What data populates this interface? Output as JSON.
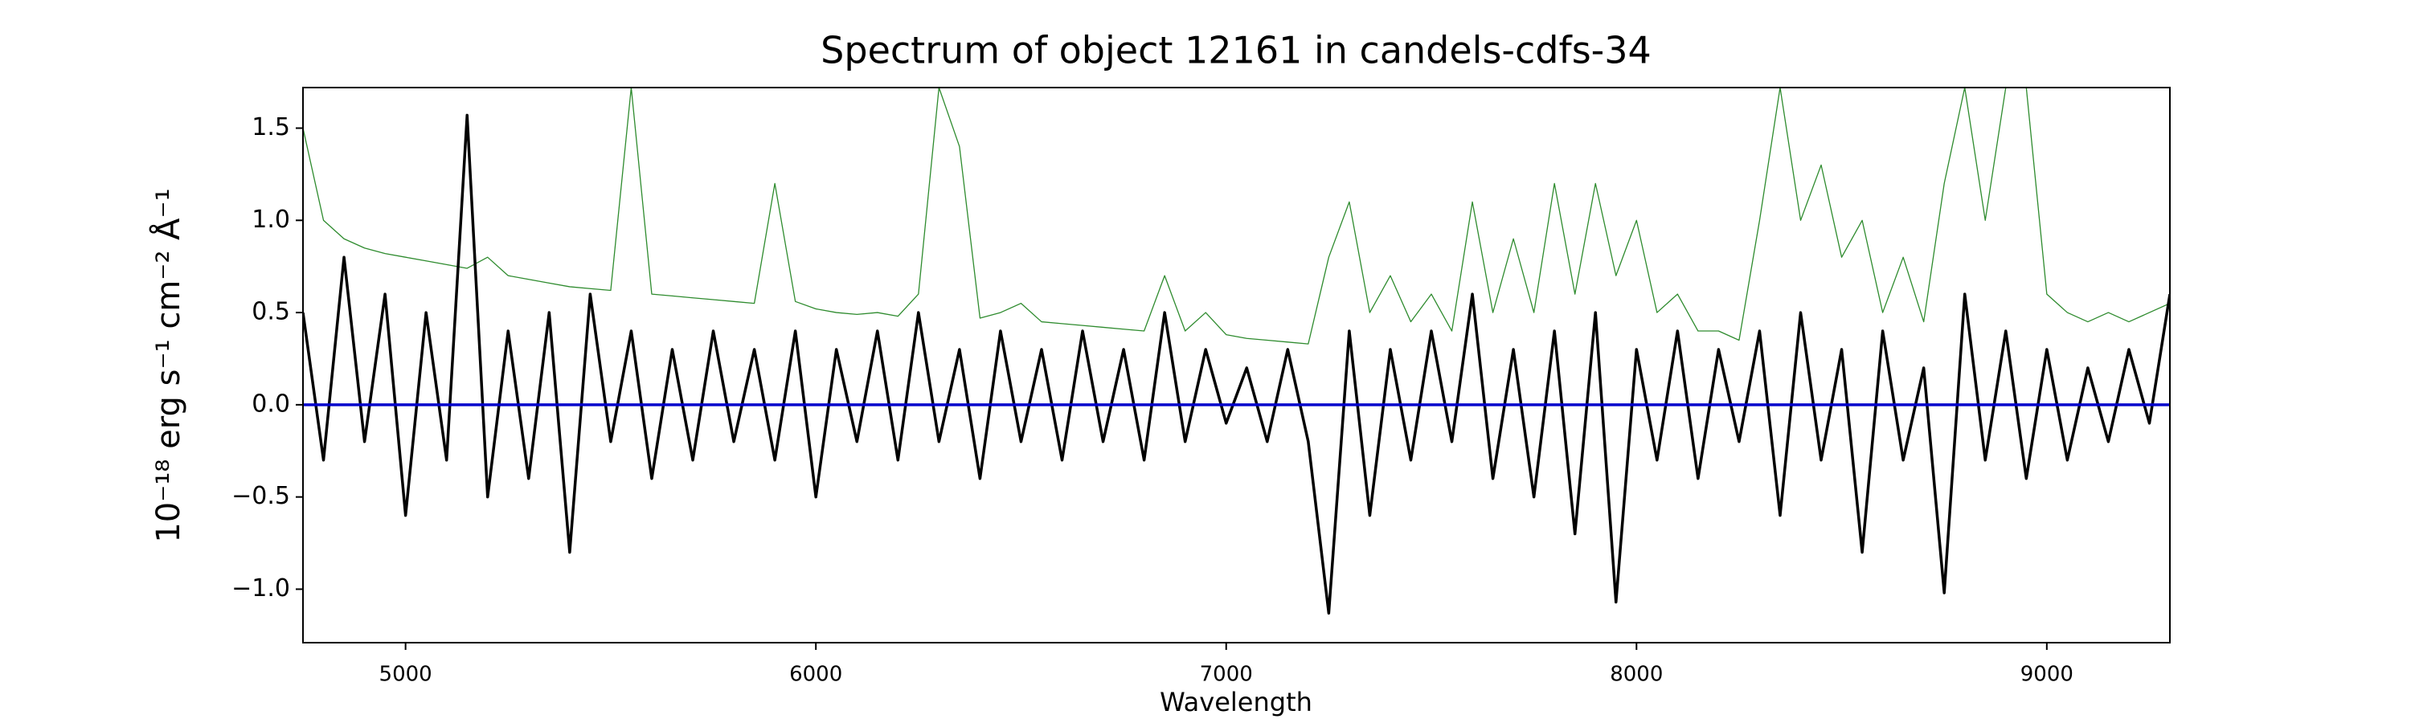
{
  "chart_data": {
    "type": "line",
    "title": "Spectrum of object 12161 in candels-cdfs-34",
    "xlabel": "Wavelength",
    "ylabel": "10⁻¹⁸ erg s⁻¹ cm⁻² Å⁻¹",
    "x": [
      4750,
      4800,
      4850,
      4900,
      4950,
      5000,
      5050,
      5100,
      5150,
      5200,
      5250,
      5300,
      5350,
      5400,
      5450,
      5500,
      5550,
      5600,
      5650,
      5700,
      5750,
      5800,
      5850,
      5900,
      5950,
      6000,
      6050,
      6100,
      6150,
      6200,
      6250,
      6300,
      6350,
      6400,
      6450,
      6500,
      6550,
      6600,
      6650,
      6700,
      6750,
      6800,
      6850,
      6900,
      6950,
      7000,
      7050,
      7100,
      7150,
      7200,
      7250,
      7300,
      7350,
      7400,
      7450,
      7500,
      7550,
      7600,
      7650,
      7700,
      7750,
      7800,
      7850,
      7900,
      7950,
      8000,
      8050,
      8100,
      8150,
      8200,
      8250,
      8300,
      8350,
      8400,
      8450,
      8500,
      8550,
      8600,
      8650,
      8700,
      8750,
      8800,
      8850,
      8900,
      8950,
      9000,
      9050,
      9100,
      9150,
      9200,
      9250,
      9300
    ],
    "series": [
      {
        "color": "#2e8b2e",
        "width": 1.3,
        "values": [
          1.5,
          1.0,
          0.9,
          0.85,
          0.82,
          0.8,
          0.78,
          0.76,
          0.74,
          0.8,
          0.7,
          0.68,
          0.66,
          0.64,
          0.63,
          0.62,
          1.72,
          0.6,
          0.59,
          0.58,
          0.57,
          0.56,
          0.55,
          1.2,
          0.56,
          0.52,
          0.5,
          0.49,
          0.5,
          0.48,
          0.6,
          1.72,
          1.4,
          0.47,
          0.5,
          0.55,
          0.45,
          0.44,
          0.43,
          0.42,
          0.41,
          0.4,
          0.7,
          0.4,
          0.5,
          0.38,
          0.36,
          0.35,
          0.34,
          0.33,
          0.8,
          1.1,
          0.5,
          0.7,
          0.45,
          0.6,
          0.4,
          1.1,
          0.5,
          0.9,
          0.5,
          1.2,
          0.6,
          1.2,
          0.7,
          1.0,
          0.5,
          0.6,
          0.4,
          0.4,
          0.35,
          1.0,
          1.72,
          1.0,
          1.3,
          0.8,
          1.0,
          0.5,
          0.8,
          0.45,
          1.2,
          1.72,
          1.0,
          1.72,
          1.72,
          0.6,
          0.5,
          0.45,
          0.5,
          0.45,
          0.5,
          0.55
        ]
      },
      {
        "color": "#000000",
        "width": 3.5,
        "values": [
          0.5,
          -0.3,
          0.8,
          -0.2,
          0.6,
          -0.6,
          0.5,
          -0.3,
          1.57,
          -0.5,
          0.4,
          -0.4,
          0.5,
          -0.8,
          0.6,
          -0.2,
          0.4,
          -0.4,
          0.3,
          -0.3,
          0.4,
          -0.2,
          0.3,
          -0.3,
          0.4,
          -0.5,
          0.3,
          -0.2,
          0.4,
          -0.3,
          0.5,
          -0.2,
          0.3,
          -0.4,
          0.4,
          -0.2,
          0.3,
          -0.3,
          0.4,
          -0.2,
          0.3,
          -0.3,
          0.5,
          -0.2,
          0.3,
          -0.1,
          0.2,
          -0.2,
          0.3,
          -0.2,
          -1.13,
          0.4,
          -0.6,
          0.3,
          -0.3,
          0.4,
          -0.2,
          0.6,
          -0.4,
          0.3,
          -0.5,
          0.4,
          -0.7,
          0.5,
          -1.07,
          0.3,
          -0.3,
          0.4,
          -0.4,
          0.3,
          -0.2,
          0.4,
          -0.6,
          0.5,
          -0.3,
          0.3,
          -0.8,
          0.4,
          -0.3,
          0.2,
          -1.02,
          0.6,
          -0.3,
          0.4,
          -0.4,
          0.3,
          -0.3,
          0.2,
          -0.2,
          0.3,
          -0.1,
          0.6
        ]
      },
      {
        "color": "#0000cc",
        "width": 3.5,
        "values": [
          0,
          0,
          0,
          0,
          0,
          0,
          0,
          0,
          0,
          0,
          0,
          0,
          0,
          0,
          0,
          0,
          0,
          0,
          0,
          0,
          0,
          0,
          0,
          0,
          0,
          0,
          0,
          0,
          0,
          0,
          0,
          0,
          0,
          0,
          0,
          0,
          0,
          0,
          0,
          0,
          0,
          0,
          0,
          0,
          0,
          0,
          0,
          0,
          0,
          0,
          0,
          0,
          0,
          0,
          0,
          0,
          0,
          0,
          0,
          0,
          0,
          0,
          0,
          0,
          0,
          0,
          0,
          0,
          0,
          0,
          0,
          0,
          0,
          0,
          0,
          0,
          0,
          0,
          0,
          0,
          0,
          0,
          0,
          0,
          0,
          0,
          0,
          0,
          0,
          0,
          0,
          0
        ]
      }
    ],
    "xlim": [
      4750,
      9300
    ],
    "ylim": [
      -1.29,
      1.72
    ],
    "xticks": [
      5000,
      6000,
      7000,
      8000,
      9000
    ],
    "yticks": [
      {
        "value": -1.0,
        "label": "−1.0"
      },
      {
        "value": -0.5,
        "label": "−0.5"
      },
      {
        "value": 0.0,
        "label": "0.0"
      },
      {
        "value": 0.5,
        "label": "0.5"
      },
      {
        "value": 1.0,
        "label": "1.0"
      },
      {
        "value": 1.5,
        "label": "1.5"
      }
    ],
    "grid": false
  }
}
